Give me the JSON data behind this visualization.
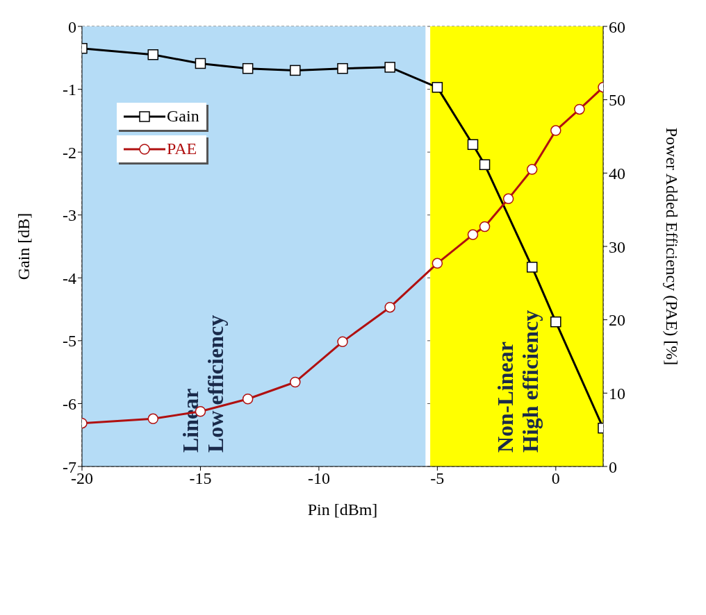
{
  "chart_data": {
    "type": "line",
    "xlabel": "Pin [dBm]",
    "ylabel": "Gain [dB]",
    "y2label": "Power Added Efficiency (PAE)  [%]",
    "xlim": [
      -20,
      2
    ],
    "xticks": [
      -20,
      -15,
      -10,
      -5,
      0
    ],
    "ylim": [
      -7,
      0
    ],
    "yticks": [
      -7,
      -6,
      -5,
      -4,
      -3,
      -2,
      -1,
      0
    ],
    "y2lim": [
      0,
      60
    ],
    "y2ticks": [
      0,
      10,
      20,
      30,
      40,
      50,
      60
    ],
    "grid": true,
    "legend": "top left",
    "line_style": "solid",
    "bands": [
      {
        "axis": "x",
        "from": -20,
        "to": -5.5,
        "label": "Linear\nLow efficiency",
        "color": "#b5dcf6"
      },
      {
        "axis": "x",
        "from": -5.3,
        "to": 2,
        "label": "Non-Linear\nHigh efficiency",
        "color": "#ffff00"
      }
    ],
    "series": [
      {
        "name": "Gain",
        "color": "#000000",
        "marker": "square",
        "x": [
          -20,
          -17,
          -15,
          -13,
          -11,
          -9,
          -7,
          -5,
          -3.5,
          -3,
          -1,
          0,
          2
        ],
        "values": [
          -0.35,
          -0.45,
          -0.59,
          -0.67,
          -0.7,
          -0.67,
          -0.65,
          -0.97,
          -1.88,
          -2.2,
          -3.83,
          -4.7,
          -6.39
        ]
      },
      {
        "name": "PAE",
        "color": "#b01010",
        "marker": "circle",
        "axis": "y2",
        "x": [
          -20,
          -17,
          -15,
          -13,
          -11,
          -9,
          -7,
          -5,
          -3.5,
          -3,
          -2,
          -1,
          0,
          1,
          2
        ],
        "values": [
          5.9,
          6.5,
          7.5,
          9.2,
          11.5,
          17,
          21.7,
          27.7,
          31.6,
          32.7,
          36.5,
          40.5,
          45.8,
          48.7,
          51.7
        ]
      }
    ]
  }
}
